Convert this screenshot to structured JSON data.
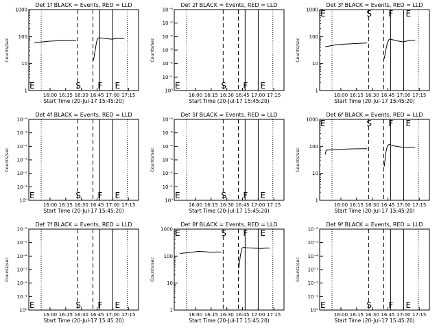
{
  "x_axis": {
    "label": "Start Time (20-Jul-17 15:45:20)",
    "ticks": [
      {
        "t": 15.0,
        "label": "16:00"
      },
      {
        "t": 30.0,
        "label": "16:15"
      },
      {
        "t": 45.0,
        "label": "16:30"
      },
      {
        "t": 60.0,
        "label": "16:45"
      },
      {
        "t": 75.0,
        "label": "17:00"
      },
      {
        "t": 90.0,
        "label": "17:15"
      }
    ],
    "range": [
      -5.33,
      99.67
    ]
  },
  "y_label": "Counts/sec",
  "log_tick_labels": {
    "1": "1",
    "10": "10",
    "100": "100",
    "1000": "1000"
  },
  "tiny_tick_labels": [
    "10⁰",
    "10⁻¹",
    "10⁻²",
    "10⁻³",
    "10⁻⁴",
    "10⁻⁵",
    "10⁻⁶"
  ],
  "chart_data": [
    {
      "type": "line",
      "scale": "log",
      "title": "Det 1f BLACK = Events, RED = LLD",
      "ylim": [
        1,
        1000
      ],
      "markers": {
        "S": 41.5,
        "F": 62.5,
        "E": 79.0
      },
      "dotted_lines": [
        6.5,
        89.0
      ],
      "dashed_lines": [
        41.5,
        56.0
      ],
      "solid_lines": [
        62.5,
        75.0
      ],
      "label_row": "bottom",
      "series": [
        {
          "name": "Events",
          "segments": [
            {
              "x": [
                0,
                8,
                16,
                24,
                32,
                40
              ],
              "y": [
                60,
                64,
                68,
                70,
                71,
                72
              ]
            },
            {
              "x": [
                56.5,
                58,
                59.5,
                61,
                62.5
              ],
              "y": [
                13,
                28,
                65,
                88,
                92
              ]
            },
            {
              "x": [
                62.5,
                66,
                70,
                74,
                78,
                82,
                86
              ],
              "y": [
                90,
                86,
                83,
                80,
                84,
                86,
                84
              ]
            }
          ]
        }
      ]
    },
    {
      "type": "line",
      "scale": "tiny",
      "title": "Det 2f BLACK = Events, RED = LLD",
      "markers": {
        "S": 41.5,
        "F": 62.5,
        "E": 79.0
      },
      "dotted_lines": [
        6.5,
        89.0
      ],
      "dashed_lines": [
        41.5,
        56.0
      ],
      "solid_lines": [
        62.5,
        75.0
      ],
      "label_row": "bottom",
      "series": []
    },
    {
      "type": "line",
      "scale": "log",
      "title": "Det 3f BLACK = Events, RED = LLD",
      "ylim": [
        1,
        1000
      ],
      "markers": {
        "S": 41.5,
        "F": 62.5,
        "E": 79.0
      },
      "dotted_lines": [
        6.5,
        89.0
      ],
      "dashed_lines": [
        41.5,
        56.0
      ],
      "solid_lines": [
        62.5,
        75.0
      ],
      "label_row": "top",
      "red_top": true,
      "series": [
        {
          "name": "Events",
          "segments": [
            {
              "x": [
                0,
                8,
                16,
                24,
                32,
                40
              ],
              "y": [
                42,
                48,
                52,
                54,
                56,
                58
              ]
            },
            {
              "x": [
                56.5,
                58,
                59.5,
                61,
                62.5
              ],
              "y": [
                15,
                32,
                60,
                78,
                82
              ]
            },
            {
              "x": [
                62.5,
                66,
                70,
                74,
                78,
                82,
                86
              ],
              "y": [
                80,
                74,
                68,
                64,
                68,
                74,
                72
              ]
            }
          ]
        }
      ]
    },
    {
      "type": "line",
      "scale": "tiny",
      "title": "Det 4f BLACK = Events, RED = LLD",
      "markers": {
        "S": 41.5,
        "F": 62.5,
        "E": 79.0
      },
      "dotted_lines": [
        6.5,
        89.0
      ],
      "dashed_lines": [
        41.5,
        56.0
      ],
      "solid_lines": [
        62.5,
        75.0
      ],
      "label_row": "bottom",
      "series": []
    },
    {
      "type": "line",
      "scale": "tiny",
      "title": "Det 5f BLACK = Events, RED = LLD",
      "markers": {
        "S": 41.5,
        "F": 62.5,
        "E": 79.0
      },
      "dotted_lines": [
        6.5,
        89.0
      ],
      "dashed_lines": [
        41.5,
        56.0
      ],
      "solid_lines": [
        62.5,
        75.0
      ],
      "label_row": "bottom",
      "series": []
    },
    {
      "type": "line",
      "scale": "log",
      "title": "Det 6f BLACK = Events, RED = LLD",
      "ylim": [
        1,
        1000
      ],
      "markers": {
        "S": 41.5,
        "F": 62.5,
        "E": 79.0
      },
      "dotted_lines": [
        6.5,
        89.0
      ],
      "dashed_lines": [
        41.5,
        56.0
      ],
      "solid_lines": [
        62.5,
        75.0
      ],
      "label_row": "top",
      "series": [
        {
          "name": "Events",
          "segments": [
            {
              "x": [
                0,
                1,
                8,
                16,
                24,
                32,
                40
              ],
              "y": [
                50,
                72,
                75,
                78,
                80,
                81,
                82
              ]
            },
            {
              "x": [
                56.5,
                58,
                59.5,
                61,
                62.5
              ],
              "y": [
                18,
                60,
                105,
                118,
                115
              ]
            },
            {
              "x": [
                62.5,
                66,
                70,
                74,
                78,
                82,
                86
              ],
              "y": [
                112,
                104,
                98,
                92,
                90,
                94,
                90
              ]
            }
          ]
        }
      ]
    },
    {
      "type": "line",
      "scale": "tiny",
      "title": "Det 7f BLACK = Events, RED = LLD",
      "markers": {
        "S": 41.5,
        "F": 62.5,
        "E": 79.0
      },
      "dotted_lines": [
        6.5,
        89.0
      ],
      "dashed_lines": [
        41.5,
        56.0
      ],
      "solid_lines": [
        62.5,
        75.0
      ],
      "label_row": "bottom",
      "series": []
    },
    {
      "type": "line",
      "scale": "log",
      "title": "Det 8f BLACK = Events, RED = LLD",
      "ylim": [
        1,
        1000
      ],
      "markers": {
        "S": 41.5,
        "F": 62.5,
        "E": 79.0
      },
      "dotted_lines": [
        6.5,
        89.0
      ],
      "dashed_lines": [
        41.5,
        56.0
      ],
      "solid_lines": [
        62.5,
        75.0
      ],
      "label_row": "top",
      "series": [
        {
          "name": "Events",
          "segments": [
            {
              "x": [
                0,
                6,
                12,
                18,
                24,
                30,
                36,
                40
              ],
              "y": [
                125,
                132,
                140,
                150,
                145,
                138,
                142,
                140
              ]
            },
            {
              "x": [
                56.5,
                58,
                59.5,
                61,
                62.5
              ],
              "y": [
                35,
                110,
                195,
                215,
                210
              ]
            },
            {
              "x": [
                62.5,
                66,
                70,
                74,
                78,
                82,
                86
              ],
              "y": [
                205,
                200,
                196,
                194,
                192,
                196,
                198
              ]
            }
          ]
        }
      ]
    },
    {
      "type": "line",
      "scale": "tiny",
      "title": "Det 9f BLACK = Events, RED = LLD",
      "markers": {
        "S": 41.5,
        "F": 62.5,
        "E": 79.0
      },
      "dotted_lines": [
        6.5,
        89.0
      ],
      "dashed_lines": [
        41.5,
        56.0
      ],
      "solid_lines": [
        62.5,
        75.0
      ],
      "label_row": "bottom",
      "series": []
    }
  ]
}
